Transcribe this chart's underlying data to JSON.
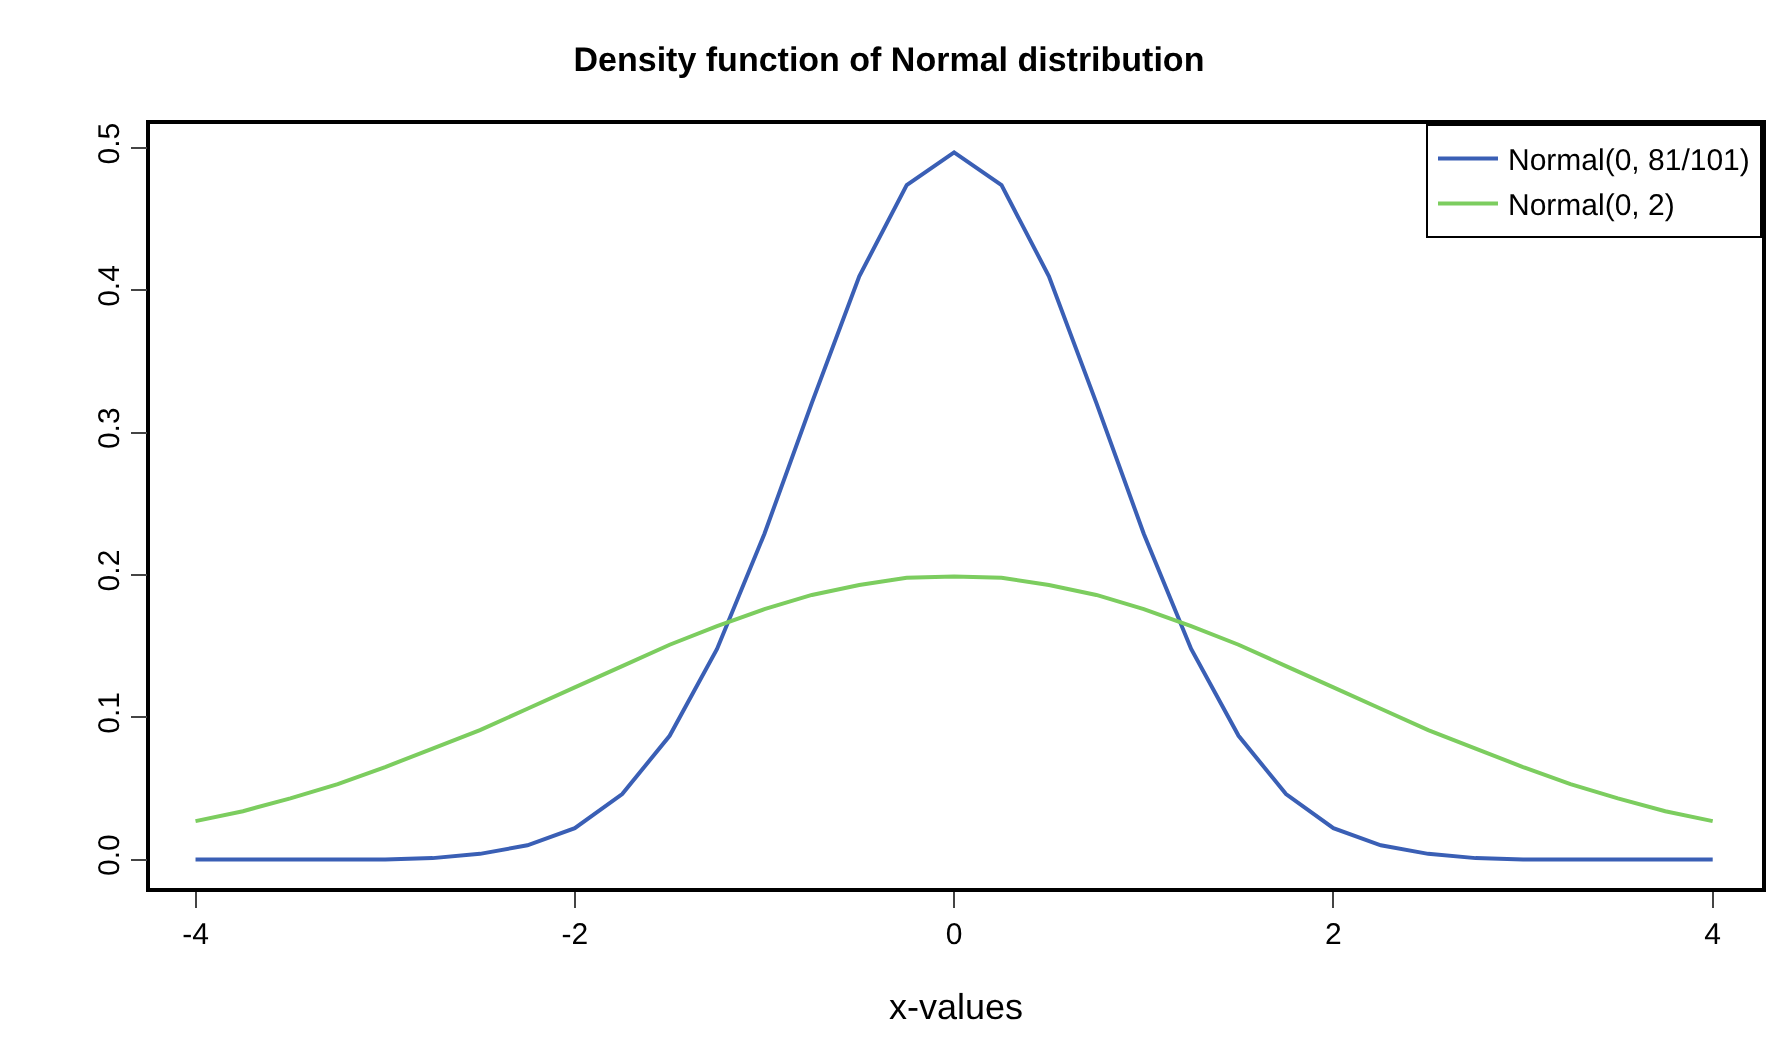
{
  "chart_data": {
    "type": "line",
    "title": "Density function of Normal distribution",
    "xlabel": "x-values",
    "x": [
      -4,
      -3.75,
      -3.5,
      -3.25,
      -3,
      -2.75,
      -2.5,
      -2.25,
      -2,
      -1.75,
      -1.5,
      -1.25,
      -1,
      -0.75,
      -0.5,
      -0.25,
      0,
      0.25,
      0.5,
      0.75,
      1,
      1.25,
      1.5,
      1.75,
      2,
      2.25,
      2.5,
      2.75,
      3,
      3.25,
      3.5,
      3.75,
      4
    ],
    "series": [
      {
        "name": "Normal(0, 81/101)",
        "color": "#3a5fb5",
        "values": [
          0,
          0,
          0,
          0,
          0,
          0.001,
          0.004,
          0.01,
          0.022,
          0.046,
          0.087,
          0.148,
          0.229,
          0.321,
          0.41,
          0.474,
          0.497,
          0.474,
          0.41,
          0.321,
          0.229,
          0.148,
          0.087,
          0.046,
          0.022,
          0.01,
          0.004,
          0.001,
          0,
          0,
          0,
          0,
          0
        ]
      },
      {
        "name": "Normal(0, 2)",
        "color": "#7ccd5f",
        "values": [
          0.027,
          0.034,
          0.043,
          0.053,
          0.065,
          0.078,
          0.091,
          0.106,
          0.121,
          0.136,
          0.151,
          0.164,
          0.176,
          0.186,
          0.193,
          0.198,
          0.199,
          0.198,
          0.193,
          0.186,
          0.176,
          0.164,
          0.151,
          0.136,
          0.121,
          0.106,
          0.091,
          0.078,
          0.065,
          0.053,
          0.043,
          0.034,
          0.027
        ]
      }
    ],
    "xlim": [
      -4.24,
      4.26
    ],
    "xticks": [
      -4,
      -2,
      0,
      2,
      4
    ],
    "ylim": [
      -0.02,
      0.517
    ],
    "yticks": [
      {
        "value": 0,
        "label": "0.0"
      },
      0.1,
      0.2,
      0.3,
      0.4,
      0.5
    ],
    "grid": false,
    "legend": "top right",
    "marker": "none",
    "line_style": "solid"
  }
}
